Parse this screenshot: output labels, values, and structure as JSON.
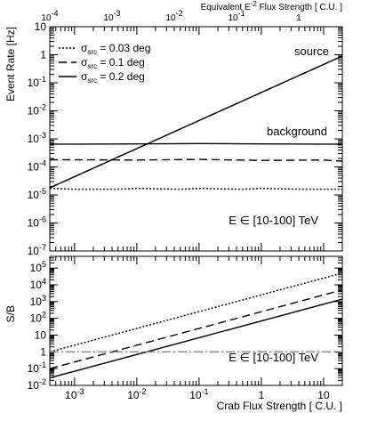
{
  "chart_data": [
    {
      "panel": "upper",
      "type": "line",
      "scale": {
        "x": "log",
        "y": "log"
      },
      "xlim": [
        0.0004,
        20
      ],
      "ylim": [
        1e-07,
        10
      ],
      "ylabel": "Event Rate [Hz]",
      "top_axis": {
        "label": "Equivalent E^-2 Flux Strength [ C.U. ]",
        "label_main": "Equivalent E",
        "label_sup": "-2",
        "label_rest": " Flux Strength [ C.U. ]",
        "ticks": [
          {
            "x": 0.0004,
            "main": "10",
            "sup": "-4"
          },
          {
            "x": 0.004,
            "main": "10",
            "sup": "-3"
          },
          {
            "x": 0.04,
            "main": "10",
            "sup": "-2"
          },
          {
            "x": 0.4,
            "main": "10",
            "sup": "-1"
          },
          {
            "x": 4,
            "main": "1",
            "sup": ""
          }
        ]
      },
      "y_ticks": [
        {
          "y": 10,
          "main": "10",
          "sup": ""
        },
        {
          "y": 1,
          "main": "1",
          "sup": ""
        },
        {
          "y": 0.1,
          "main": "10",
          "sup": "-1"
        },
        {
          "y": 0.01,
          "main": "10",
          "sup": "-2"
        },
        {
          "y": 0.001,
          "main": "10",
          "sup": "-3"
        },
        {
          "y": 0.0001,
          "main": "10",
          "sup": "-4"
        },
        {
          "y": 1e-05,
          "main": "10",
          "sup": "-5"
        },
        {
          "y": 1e-06,
          "main": "10",
          "sup": "-6"
        },
        {
          "y": 1e-07,
          "main": "10",
          "sup": "-7"
        }
      ],
      "legend": {
        "placement": "top-left",
        "entries": [
          {
            "prefix": "σ",
            "sub": "src",
            "rest": " = 0.03 deg",
            "style": "dotted"
          },
          {
            "prefix": "σ",
            "sub": "src",
            "rest": " = 0.1 deg",
            "style": "dashed"
          },
          {
            "prefix": "σ",
            "sub": "src",
            "rest": " = 0.2 deg",
            "style": "solid"
          }
        ]
      },
      "annotations": {
        "source": "source",
        "background": "background",
        "energy": "E ∈ [10-100] TeV"
      },
      "series": [
        {
          "style": "solid",
          "x": [
            0.0004,
            20
          ],
          "y": [
            1.8e-05,
            0.9
          ]
        },
        {
          "style": "dashed",
          "x": [
            0.0004,
            20
          ],
          "y": [
            1.8e-05,
            0.9
          ]
        },
        {
          "style": "solid",
          "x": [
            0.0004,
            0.001,
            0.01,
            0.1,
            1,
            10,
            20
          ],
          "y": [
            0.00065,
            0.00065,
            0.00066,
            0.00068,
            0.00066,
            0.00065,
            0.00065
          ]
        },
        {
          "style": "dashed",
          "x": [
            0.0004,
            0.001,
            0.01,
            0.1,
            1,
            10,
            20
          ],
          "y": [
            0.00018,
            0.00018,
            0.000175,
            0.000185,
            0.00017,
            0.000175,
            0.00016
          ]
        },
        {
          "style": "dotted",
          "x": [
            0.0004,
            0.001,
            0.005,
            0.01,
            0.05,
            0.1,
            0.5,
            1,
            5,
            20
          ],
          "y": [
            1.7e-05,
            1.6e-05,
            1.6e-05,
            1.7e-05,
            1.6e-05,
            1.7e-05,
            1.6e-05,
            1.7e-05,
            1.6e-05,
            1.6e-05
          ]
        }
      ]
    },
    {
      "panel": "lower",
      "type": "line",
      "scale": {
        "x": "log",
        "y": "log"
      },
      "xlim": [
        0.0004,
        20
      ],
      "ylim": [
        0.01,
        500000
      ],
      "xlabel": "Crab Flux Strength [ C.U. ]",
      "ylabel": "S/B",
      "x_ticks": [
        {
          "x": 0.001,
          "main": "10",
          "sup": "-3"
        },
        {
          "x": 0.01,
          "main": "10",
          "sup": "-2"
        },
        {
          "x": 0.1,
          "main": "10",
          "sup": "-1"
        },
        {
          "x": 1,
          "main": "1",
          "sup": ""
        },
        {
          "x": 10,
          "main": "10",
          "sup": ""
        }
      ],
      "y_ticks": [
        {
          "y": 100000,
          "main": "10",
          "sup": "5"
        },
        {
          "y": 10000,
          "main": "10",
          "sup": "4"
        },
        {
          "y": 1000,
          "main": "10",
          "sup": "3"
        },
        {
          "y": 100,
          "main": "10",
          "sup": "2"
        },
        {
          "y": 10,
          "main": "10",
          "sup": ""
        },
        {
          "y": 1,
          "main": "1",
          "sup": ""
        },
        {
          "y": 0.1,
          "main": "10",
          "sup": "-1"
        },
        {
          "y": 0.01,
          "main": "10",
          "sup": "-2"
        }
      ],
      "annotations": {
        "energy": "E ∈ [10-100] TeV"
      },
      "series": [
        {
          "style": "dotted",
          "x": [
            0.0004,
            20
          ],
          "y": [
            1,
            50000
          ]
        },
        {
          "style": "dashed",
          "x": [
            0.0004,
            20
          ],
          "y": [
            0.1,
            5000
          ]
        },
        {
          "style": "solid",
          "x": [
            0.0004,
            20
          ],
          "y": [
            0.028,
            1400
          ]
        },
        {
          "style": "dashdot",
          "color": "#888888",
          "x": [
            0.0004,
            20
          ],
          "y": [
            1,
            1
          ]
        }
      ]
    }
  ]
}
